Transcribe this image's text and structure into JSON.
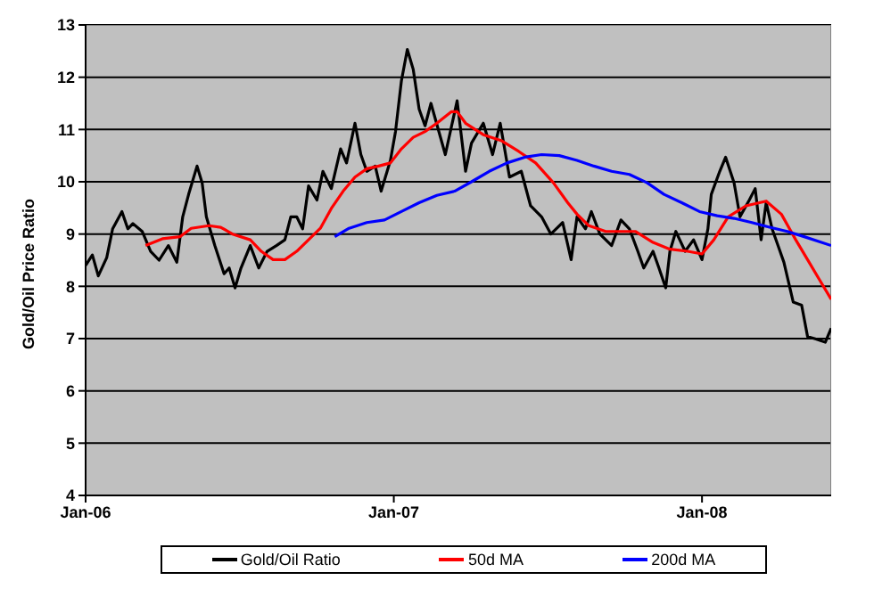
{
  "chart_data": {
    "type": "line",
    "ylabel": "Gold/Oil Price Ratio",
    "xlim": [
      "2006-01-01",
      "2008-06-02"
    ],
    "xticks": [
      {
        "value": "2006-01-01",
        "label": "Jan-06"
      },
      {
        "value": "2007-01-01",
        "label": "Jan-07"
      },
      {
        "value": "2008-01-01",
        "label": "Jan-08"
      }
    ],
    "ylim": [
      4,
      13
    ],
    "yticks": [
      4,
      5,
      6,
      7,
      8,
      9,
      10,
      11,
      12,
      13
    ],
    "grid": "y",
    "legend": "bottom",
    "series": [
      {
        "name": "Gold/Oil Ratio",
        "color": "#000000",
        "x": [
          "2006-01-01",
          "2006-01-09",
          "2006-01-16",
          "2006-01-26",
          "2006-02-02",
          "2006-02-13",
          "2006-02-20",
          "2006-02-26",
          "2006-03-09",
          "2006-03-19",
          "2006-03-29",
          "2006-04-09",
          "2006-04-19",
          "2006-04-26",
          "2006-05-03",
          "2006-05-13",
          "2006-05-19",
          "2006-05-24",
          "2006-06-03",
          "2006-06-14",
          "2006-06-20",
          "2006-06-27",
          "2006-07-04",
          "2006-07-15",
          "2006-07-25",
          "2006-08-04",
          "2006-08-15",
          "2006-08-25",
          "2006-09-01",
          "2006-09-08",
          "2006-09-15",
          "2006-09-22",
          "2006-10-02",
          "2006-10-09",
          "2006-10-19",
          "2006-10-30",
          "2006-11-06",
          "2006-11-16",
          "2006-11-23",
          "2006-11-30",
          "2006-12-10",
          "2006-12-17",
          "2006-12-28",
          "2007-01-03",
          "2007-01-10",
          "2007-01-17",
          "2007-01-24",
          "2007-01-31",
          "2007-02-07",
          "2007-02-14",
          "2007-03-03",
          "2007-03-17",
          "2007-03-27",
          "2007-04-03",
          "2007-04-17",
          "2007-04-28",
          "2007-05-07",
          "2007-05-18",
          "2007-06-01",
          "2007-06-12",
          "2007-06-25",
          "2007-07-06",
          "2007-07-20",
          "2007-07-30",
          "2007-08-06",
          "2007-08-16",
          "2007-08-23",
          "2007-09-02",
          "2007-09-16",
          "2007-09-27",
          "2007-10-07",
          "2007-10-17",
          "2007-10-24",
          "2007-11-04",
          "2007-11-11",
          "2007-11-19",
          "2007-11-24",
          "2007-12-01",
          "2007-12-12",
          "2007-12-22",
          "2008-01-01",
          "2008-01-08",
          "2008-01-12",
          "2008-01-22",
          "2008-01-29",
          "2008-02-08",
          "2008-02-15",
          "2008-02-26",
          "2008-03-04",
          "2008-03-11",
          "2008-03-17",
          "2008-03-24",
          "2008-03-31",
          "2008-04-07",
          "2008-04-18",
          "2008-04-28",
          "2008-05-05",
          "2008-05-15",
          "2008-05-26",
          "2008-06-02"
        ],
        "values": [
          8.4,
          8.6,
          8.2,
          8.55,
          9.1,
          9.43,
          9.1,
          9.2,
          9.05,
          8.67,
          8.5,
          8.78,
          8.46,
          9.33,
          9.76,
          10.3,
          9.98,
          9.33,
          8.78,
          8.24,
          8.35,
          7.97,
          8.35,
          8.78,
          8.35,
          8.67,
          8.78,
          8.89,
          9.33,
          9.33,
          9.1,
          9.92,
          9.65,
          10.2,
          9.87,
          10.63,
          10.36,
          11.12,
          10.52,
          10.2,
          10.3,
          9.82,
          10.41,
          10.96,
          11.93,
          12.53,
          12.15,
          11.39,
          11.07,
          11.5,
          10.52,
          11.55,
          10.2,
          10.74,
          11.12,
          10.52,
          11.12,
          10.09,
          10.2,
          9.54,
          9.33,
          9,
          9.22,
          8.51,
          9.33,
          9.1,
          9.43,
          9,
          8.78,
          9.27,
          9.1,
          8.67,
          8.35,
          8.67,
          8.35,
          7.97,
          8.67,
          9.05,
          8.67,
          8.89,
          8.51,
          9.1,
          9.76,
          10.2,
          10.47,
          9.98,
          9.33,
          9.65,
          9.87,
          8.89,
          9.6,
          9.1,
          8.78,
          8.46,
          7.7,
          7.64,
          7.04,
          6.99,
          6.93,
          7.2
        ]
      },
      {
        "name": "50d MA",
        "color": "#ff0000",
        "x": [
          "2006-03-13",
          "2006-04-02",
          "2006-04-23",
          "2006-05-06",
          "2006-05-27",
          "2006-06-10",
          "2006-06-24",
          "2006-07-15",
          "2006-07-28",
          "2006-08-11",
          "2006-08-25",
          "2006-09-08",
          "2006-09-22",
          "2006-10-06",
          "2006-10-19",
          "2006-11-02",
          "2006-11-16",
          "2006-11-30",
          "2006-12-14",
          "2006-12-28",
          "2007-01-10",
          "2007-01-24",
          "2007-02-07",
          "2007-02-21",
          "2007-03-10",
          "2007-03-17",
          "2007-03-27",
          "2007-04-17",
          "2007-05-08",
          "2007-05-29",
          "2007-06-18",
          "2007-07-09",
          "2007-07-26",
          "2007-08-06",
          "2007-08-20",
          "2007-09-09",
          "2007-09-30",
          "2007-10-14",
          "2007-11-04",
          "2007-11-24",
          "2007-12-15",
          "2008-01-01",
          "2008-01-15",
          "2008-02-01",
          "2008-02-22",
          "2008-03-17",
          "2008-04-04",
          "2008-04-21",
          "2008-05-05",
          "2008-05-19",
          "2008-06-02"
        ],
        "values": [
          8.78,
          8.91,
          8.95,
          9.11,
          9.16,
          9.13,
          9,
          8.89,
          8.67,
          8.51,
          8.51,
          8.67,
          8.89,
          9.11,
          9.49,
          9.82,
          10.09,
          10.25,
          10.3,
          10.36,
          10.63,
          10.85,
          10.96,
          11.12,
          11.34,
          11.34,
          11.12,
          10.9,
          10.79,
          10.58,
          10.36,
          9.98,
          9.6,
          9.38,
          9.16,
          9.05,
          9.05,
          9.05,
          8.84,
          8.71,
          8.67,
          8.62,
          8.89,
          9.33,
          9.54,
          9.63,
          9.38,
          8.89,
          8.51,
          8.13,
          7.75
        ]
      },
      {
        "name": "200d MA",
        "color": "#0000ff",
        "x": [
          "2006-10-23",
          "2006-11-09",
          "2006-11-30",
          "2006-12-21",
          "2007-01-10",
          "2007-01-31",
          "2007-02-21",
          "2007-03-14",
          "2007-04-03",
          "2007-04-24",
          "2007-05-15",
          "2007-06-05",
          "2007-06-25",
          "2007-07-16",
          "2007-08-06",
          "2007-08-26",
          "2007-09-16",
          "2007-10-07",
          "2007-10-28",
          "2007-11-17",
          "2007-12-08",
          "2007-12-29",
          "2008-01-19",
          "2008-02-08",
          "2008-02-29",
          "2008-03-21",
          "2008-04-11",
          "2008-05-01",
          "2008-06-02"
        ],
        "values": [
          8.95,
          9.11,
          9.22,
          9.27,
          9.43,
          9.6,
          9.74,
          9.82,
          10,
          10.2,
          10.36,
          10.47,
          10.52,
          10.5,
          10.41,
          10.3,
          10.2,
          10.14,
          9.98,
          9.76,
          9.6,
          9.43,
          9.35,
          9.3,
          9.22,
          9.13,
          9.05,
          8.95,
          8.78
        ]
      }
    ]
  }
}
